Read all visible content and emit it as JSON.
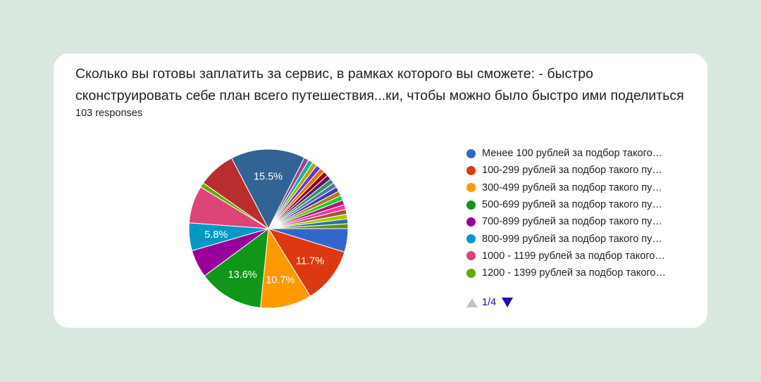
{
  "question": {
    "title": "Сколько вы готовы заплатить за сервис, в рамках которого вы сможете:  - быстро сконструировать себе план всего путешествия...ки, чтобы можно было быстро ими поделиться",
    "responses": "103 responses"
  },
  "legend_items": [
    {
      "label": "Менее 100 рублей за подбор такого…",
      "color": "#3366cc"
    },
    {
      "label": "100-299 рублей за подбор такого пу…",
      "color": "#dc3912"
    },
    {
      "label": "300-499 рублей за подбор такого пу…",
      "color": "#ff9900"
    },
    {
      "label": "500-699 рублей за подбор такого пу…",
      "color": "#109618"
    },
    {
      "label": "700-899 рублей за подбор такого пу…",
      "color": "#990099"
    },
    {
      "label": "800-999 рублей за подбор такого пу…",
      "color": "#0099c6"
    },
    {
      "label": "1000 - 1199 рублей за подбор такого…",
      "color": "#dd4477"
    },
    {
      "label": "1200 - 1399 рублей за подбор такого…",
      "color": "#66aa00"
    }
  ],
  "pagination": {
    "text": "1/4"
  },
  "chart_data": {
    "type": "pie",
    "slices": [
      {
        "label": "Менее 100 рублей за подбор такого…",
        "value": 4.9,
        "color": "#3366cc",
        "show_label": false
      },
      {
        "label": "100-299 рублей за подбор такого пу…",
        "value": 11.7,
        "color": "#dc3912",
        "show_label": true
      },
      {
        "label": "300-499 рублей за подбор такого пу…",
        "value": 10.7,
        "color": "#ff9900",
        "show_label": true
      },
      {
        "label": "500-699 рублей за подбор такого пу…",
        "value": 13.6,
        "color": "#109618",
        "show_label": true
      },
      {
        "label": "700-899 рублей за подбор такого пу…",
        "value": 5.8,
        "color": "#990099",
        "show_label": false
      },
      {
        "label": "800-999 рублей за подбор такого пу…",
        "value": 5.8,
        "color": "#0099c6",
        "show_label": true
      },
      {
        "label": "1000 - 1199 рублей за подбор такого…",
        "value": 7.8,
        "color": "#dd4477",
        "show_label": false
      },
      {
        "label": "1200 - 1399 рублей за подбор такого…",
        "value": 1.0,
        "color": "#66aa00",
        "show_label": false
      },
      {
        "value": 7.8,
        "color": "#b82e2e",
        "show_label": false
      },
      {
        "value": 15.5,
        "color": "#316395",
        "show_label": true
      },
      {
        "value": 1.0,
        "color": "#994499",
        "show_label": false
      },
      {
        "value": 1.0,
        "color": "#22aa99",
        "show_label": false
      },
      {
        "value": 1.0,
        "color": "#aaaa11",
        "show_label": false
      },
      {
        "value": 1.0,
        "color": "#6633cc",
        "show_label": false
      },
      {
        "value": 1.0,
        "color": "#e67300",
        "show_label": false
      },
      {
        "value": 1.0,
        "color": "#8b0707",
        "show_label": false
      },
      {
        "value": 1.0,
        "color": "#651067",
        "show_label": false
      },
      {
        "value": 1.0,
        "color": "#329262",
        "show_label": false
      },
      {
        "value": 1.0,
        "color": "#5574a6",
        "show_label": false
      },
      {
        "value": 1.0,
        "color": "#3b3eac",
        "show_label": false
      },
      {
        "value": 1.0,
        "color": "#b77322",
        "show_label": false
      },
      {
        "value": 1.0,
        "color": "#16d620",
        "show_label": false
      },
      {
        "value": 1.0,
        "color": "#b91383",
        "show_label": false
      },
      {
        "value": 1.0,
        "color": "#f4359e",
        "show_label": false
      },
      {
        "value": 1.0,
        "color": "#9c5935",
        "show_label": false
      },
      {
        "value": 1.0,
        "color": "#a9c413",
        "show_label": false
      },
      {
        "value": 1.0,
        "color": "#2a778d",
        "show_label": false
      },
      {
        "value": 1.0,
        "color": "#668d1c",
        "show_label": false
      }
    ]
  }
}
